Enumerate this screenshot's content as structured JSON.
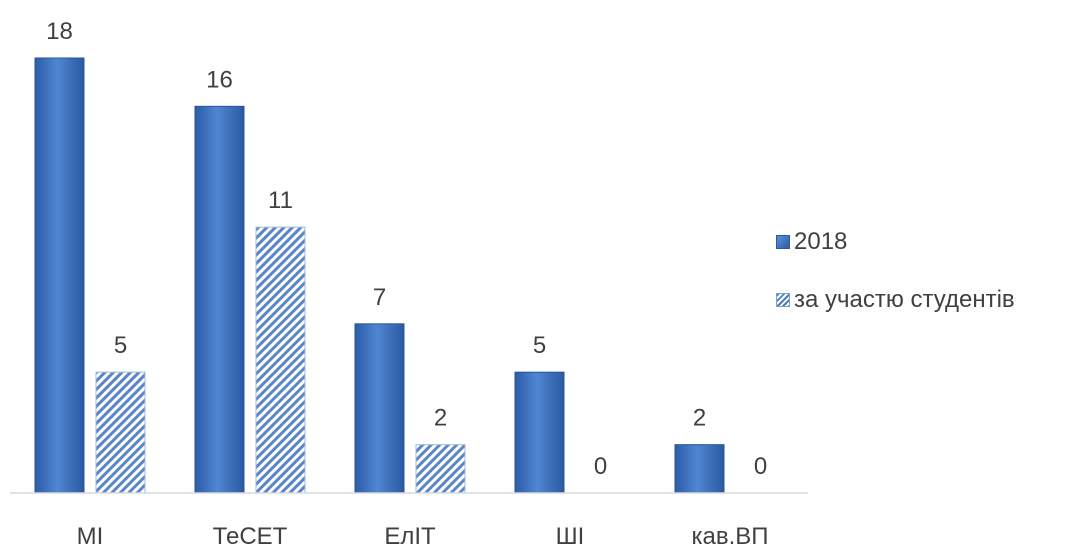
{
  "chart_data": {
    "type": "bar",
    "categories": [
      "МІ",
      "ТеСЕТ",
      "ЕлІТ",
      "ШІ",
      "кав.ВП"
    ],
    "series": [
      {
        "name": "2018",
        "values": [
          18,
          16,
          7,
          5,
          2
        ],
        "style": "solid",
        "color": "#3a6fbf"
      },
      {
        "name": "за участю студентів",
        "values": [
          5,
          11,
          2,
          0,
          0
        ],
        "style": "hatched",
        "color": "#4a7bc4"
      }
    ],
    "ylim": [
      0,
      18
    ],
    "grid": false,
    "data_labels": true,
    "legend_position": "right"
  }
}
